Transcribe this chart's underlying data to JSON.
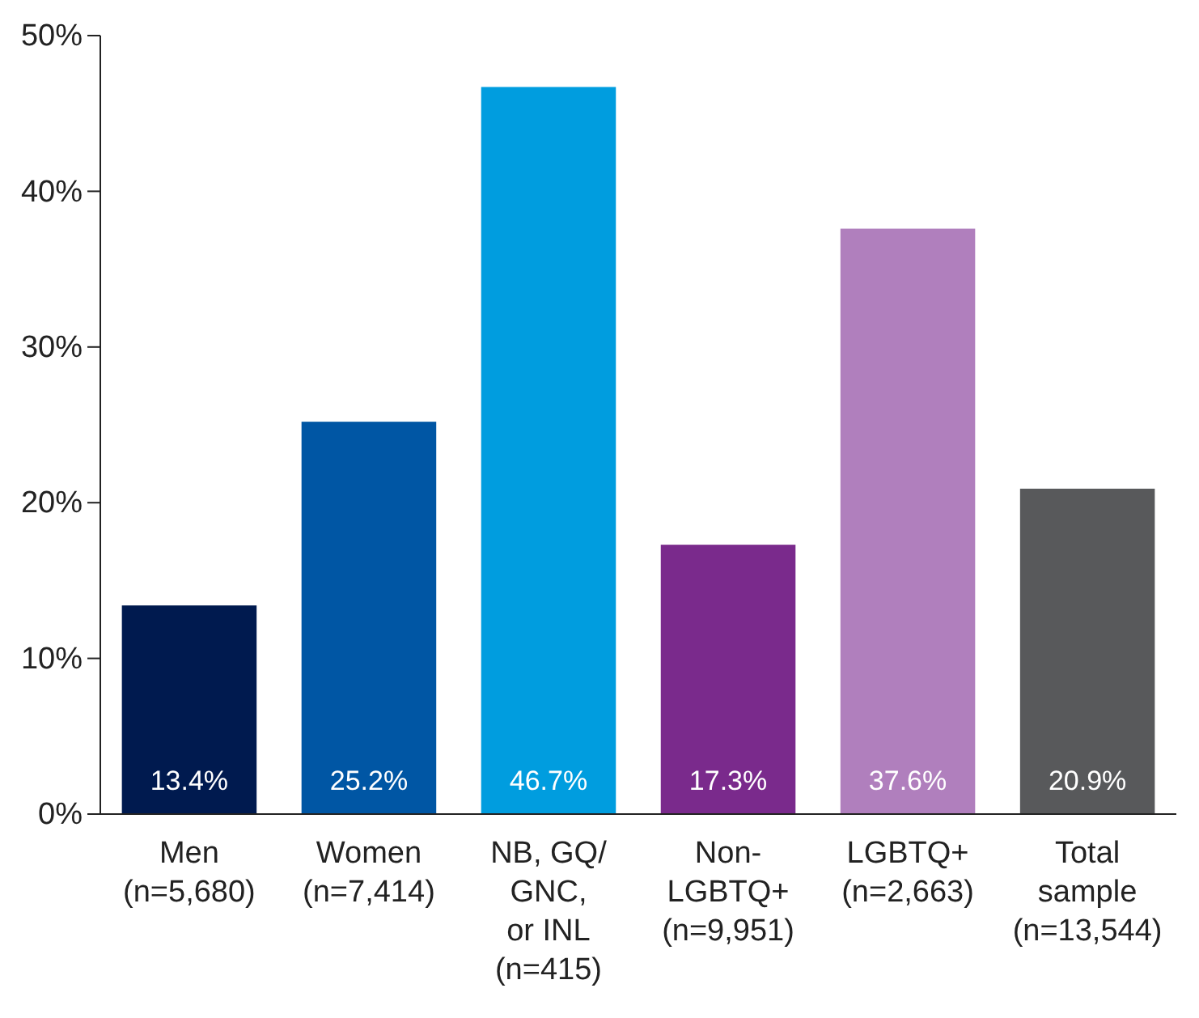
{
  "chart_data": {
    "type": "bar",
    "categories": [
      "Men\n(n=5,680)",
      "Women\n(n=7,414)",
      "NB, GQ/\nGNC,\nor INL\n(n=415)",
      "Non-\nLGBTQ+\n(n=9,951)",
      "LGBTQ+\n(n=2,663)",
      "Total\nsample\n(n=13,544)"
    ],
    "values": [
      13.4,
      25.2,
      46.7,
      17.3,
      37.6,
      20.9
    ],
    "colors": [
      "#001a4f",
      "#0056a4",
      "#009ddf",
      "#7a2a8c",
      "#b07fbd",
      "#58595b"
    ],
    "value_labels": [
      "13.4%",
      "25.2%",
      "46.7%",
      "17.3%",
      "37.6%",
      "20.9%"
    ],
    "ylim": [
      0,
      50
    ],
    "yticks": [
      {
        "value": 0,
        "label": "0%"
      },
      {
        "value": 10,
        "label": "10%"
      },
      {
        "value": 20,
        "label": "20%"
      },
      {
        "value": 30,
        "label": "30%"
      },
      {
        "value": 40,
        "label": "40%"
      },
      {
        "value": 50,
        "label": "50%"
      }
    ],
    "grid": false
  }
}
